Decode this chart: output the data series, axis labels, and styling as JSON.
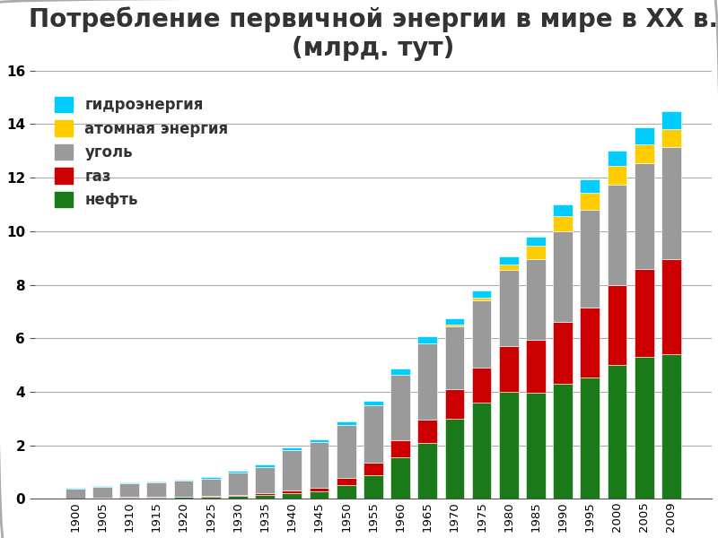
{
  "title": "Потребление первичной энергии в мире в XX в.\n(млрд. тут)",
  "years": [
    1900,
    1905,
    1910,
    1915,
    1920,
    1925,
    1930,
    1935,
    1940,
    1945,
    1950,
    1955,
    1960,
    1965,
    1970,
    1975,
    1980,
    1985,
    1990,
    1995,
    2000,
    2005,
    2009
  ],
  "нефть": [
    0.02,
    0.03,
    0.05,
    0.05,
    0.07,
    0.08,
    0.1,
    0.14,
    0.22,
    0.27,
    0.52,
    0.9,
    1.55,
    2.1,
    3.0,
    3.6,
    4.0,
    3.95,
    4.3,
    4.55,
    5.0,
    5.3,
    5.4
  ],
  "газ": [
    0.01,
    0.01,
    0.02,
    0.02,
    0.02,
    0.03,
    0.05,
    0.07,
    0.1,
    0.15,
    0.28,
    0.45,
    0.65,
    0.85,
    1.1,
    1.3,
    1.7,
    2.0,
    2.3,
    2.6,
    3.0,
    3.3,
    3.55
  ],
  "уголь": [
    0.35,
    0.42,
    0.5,
    0.53,
    0.58,
    0.65,
    0.82,
    0.98,
    1.5,
    1.72,
    1.95,
    2.15,
    2.45,
    2.85,
    2.35,
    2.5,
    2.85,
    3.0,
    3.4,
    3.65,
    3.75,
    3.95,
    4.2
  ],
  "атомная энергия": [
    0.0,
    0.0,
    0.0,
    0.0,
    0.0,
    0.0,
    0.0,
    0.0,
    0.0,
    0.0,
    0.0,
    0.0,
    0.0,
    0.0,
    0.05,
    0.1,
    0.2,
    0.5,
    0.55,
    0.65,
    0.7,
    0.7,
    0.65
  ],
  "гидроэнергия": [
    0.02,
    0.02,
    0.03,
    0.04,
    0.05,
    0.06,
    0.07,
    0.08,
    0.1,
    0.1,
    0.14,
    0.18,
    0.22,
    0.28,
    0.23,
    0.27,
    0.3,
    0.35,
    0.45,
    0.5,
    0.55,
    0.62,
    0.68
  ],
  "colors": {
    "нефть": "#1a7a1a",
    "газ": "#cc0000",
    "уголь": "#9a9a9a",
    "атомная энергия": "#ffcc00",
    "гидроэнергия": "#00ccff"
  },
  "ylim": [
    0,
    16
  ],
  "yticks": [
    0,
    2,
    4,
    6,
    8,
    10,
    12,
    14,
    16
  ],
  "background_color": "#ffffff",
  "title_fontsize": 20,
  "legend_fontsize": 12,
  "bar_width": 0.72,
  "stack_order": [
    "нефть",
    "газ",
    "уголь",
    "атомная энергия",
    "гидроэнергия"
  ]
}
